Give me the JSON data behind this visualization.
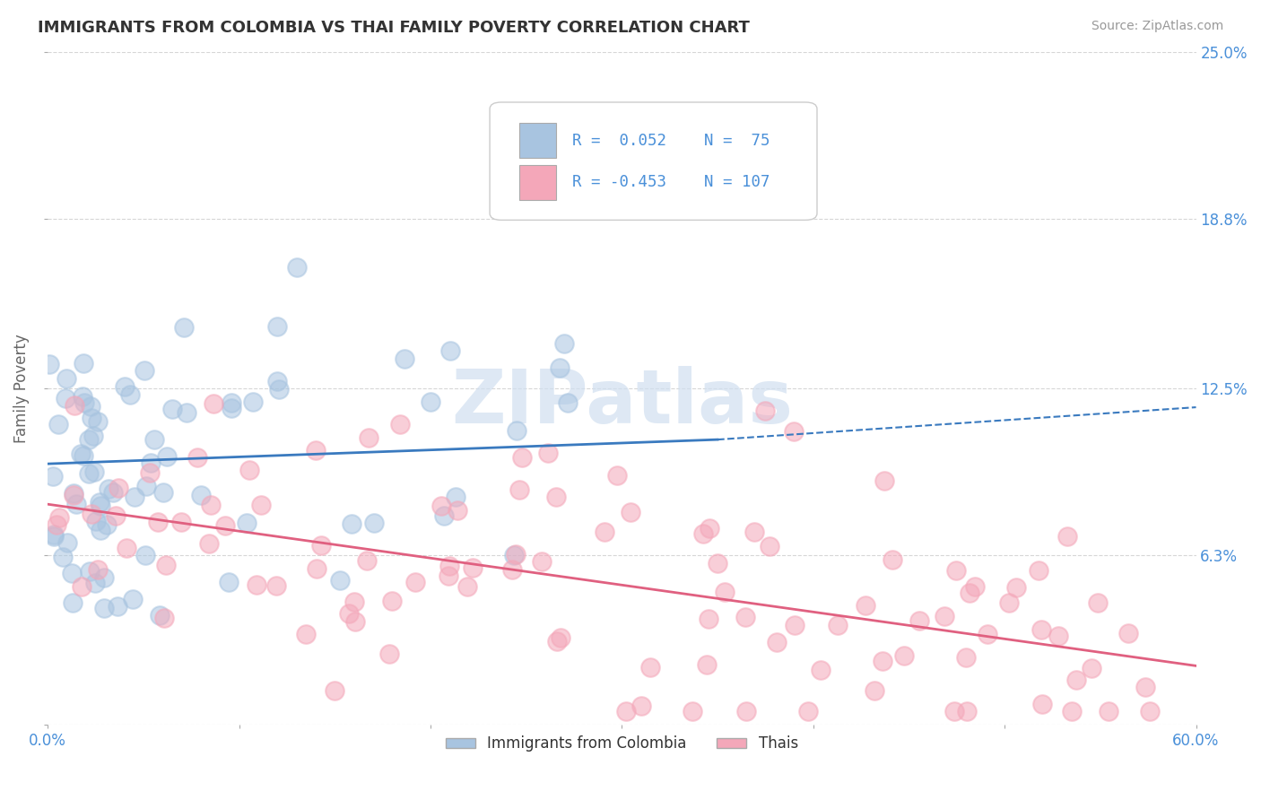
{
  "title": "IMMIGRANTS FROM COLOMBIA VS THAI FAMILY POVERTY CORRELATION CHART",
  "source": "Source: ZipAtlas.com",
  "ylabel": "Family Poverty",
  "watermark": "ZIPatlas",
  "xlim": [
    0.0,
    0.6
  ],
  "ylim": [
    0.0,
    0.25
  ],
  "yticks": [
    0.0,
    0.063,
    0.125,
    0.188,
    0.25
  ],
  "ytick_labels": [
    "",
    "6.3%",
    "12.5%",
    "18.8%",
    "25.0%"
  ],
  "xtick_left_label": "0.0%",
  "xtick_right_label": "60.0%",
  "colombia_R": 0.052,
  "colombia_N": 75,
  "thai_R": -0.453,
  "thai_N": 107,
  "colombia_color": "#a8c4e0",
  "thai_color": "#f4a7b9",
  "colombia_line_color": "#3a7abf",
  "thai_line_color": "#e06080",
  "legend_labels": [
    "Immigrants from Colombia",
    "Thais"
  ],
  "background_color": "#ffffff",
  "grid_color": "#cccccc",
  "title_color": "#333333",
  "axis_label_color": "#666666",
  "tick_color": "#4a90d9",
  "source_color": "#999999",
  "watermark_color": "#d0dff0"
}
